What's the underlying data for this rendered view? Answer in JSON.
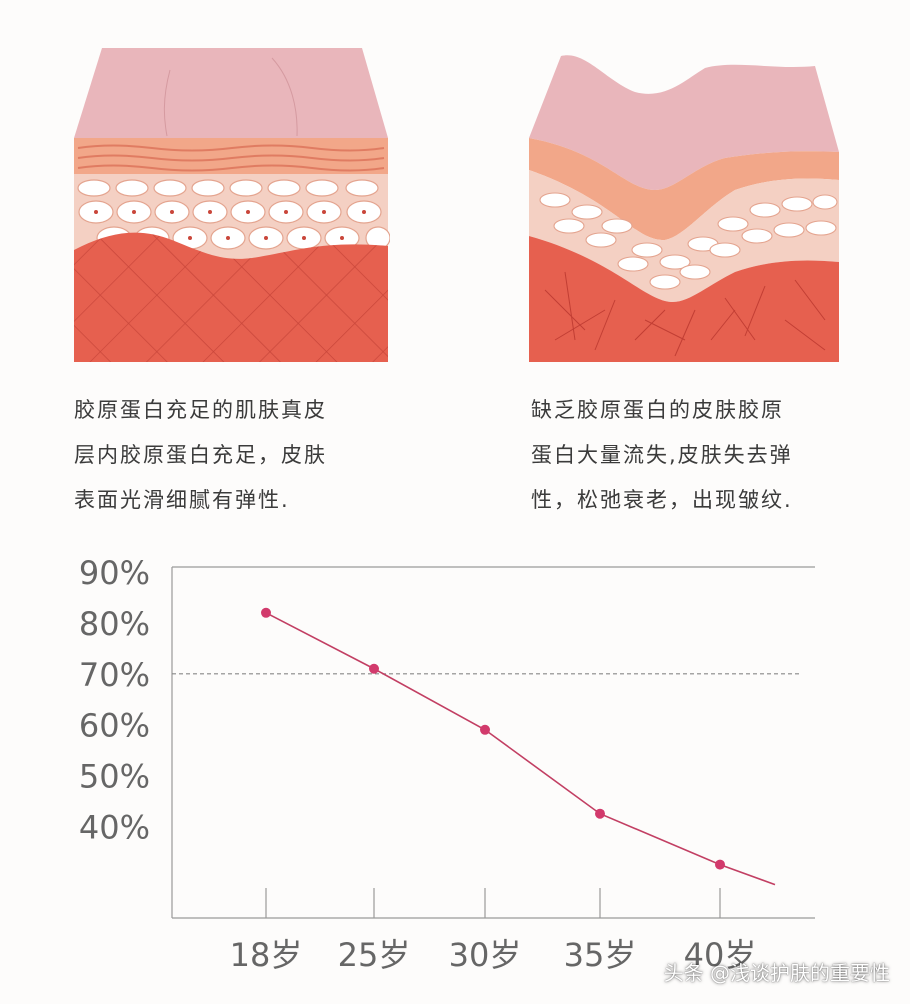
{
  "captions": {
    "left": [
      "胶原蛋白充足的肌肤真皮",
      "层内胶原蛋白充足，皮肤",
      "表面光滑细腻有弹性."
    ],
    "right": [
      "缺乏胶原蛋白的皮肤胶原",
      "蛋白大量流失,皮肤失去弹",
      "性，松弛衰老，出现皱纹."
    ]
  },
  "watermark": "头条 @浅谈护肤的重要性",
  "colors": {
    "line": "#c23f63",
    "marker": "#d23a6c",
    "dashed": "#888888",
    "axis": "#9a9a9a",
    "epidermis": "#e8b3b8",
    "dermis": "#e2624f"
  },
  "chart_data": {
    "type": "line",
    "categories": [
      "18岁",
      "25岁",
      "30岁",
      "35岁",
      "40岁"
    ],
    "values": [
      82,
      71,
      59,
      42.5,
      32.5
    ],
    "y_ticks": [
      "90%",
      "80%",
      "70%",
      "60%",
      "50%",
      "40%"
    ],
    "y_tick_values": [
      90,
      80,
      70,
      60,
      50,
      40
    ],
    "reference_line": 70,
    "ylim": [
      22,
      91
    ],
    "grid": false,
    "title": "",
    "xlabel": "",
    "ylabel": ""
  }
}
